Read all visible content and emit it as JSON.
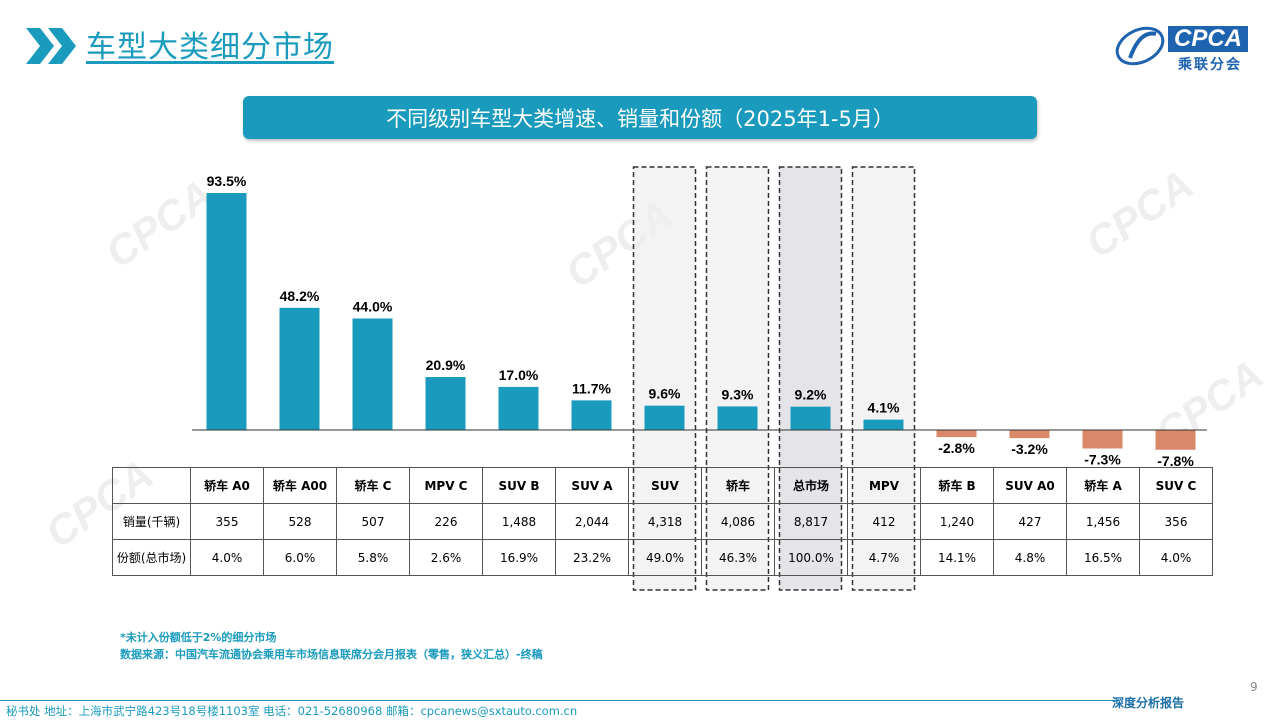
{
  "header": {
    "title": "车型大类细分市场",
    "logo_text": "CPCA",
    "logo_sub": "乘联分会",
    "icon": "double-chevron-right-icon"
  },
  "banner": {
    "text": "不同级别车型大类增速、销量和份额（2025年1-5月）"
  },
  "chart_data": {
    "type": "bar",
    "categories": [
      "轿车 A0",
      "轿车 A00",
      "轿车 C",
      "MPV C",
      "SUV B",
      "SUV A",
      "SUV",
      "轿车",
      "总市场",
      "MPV",
      "轿车 B",
      "SUV A0",
      "轿车 A",
      "SUV C"
    ],
    "values": [
      93.5,
      48.2,
      44.0,
      20.9,
      17.0,
      11.7,
      9.6,
      9.3,
      9.2,
      4.1,
      -2.8,
      -3.2,
      -7.3,
      -7.8
    ],
    "value_labels": [
      "93.5%",
      "48.2%",
      "44.0%",
      "20.9%",
      "17.0%",
      "11.7%",
      "9.6%",
      "9.3%",
      "9.2%",
      "4.1%",
      "-2.8%",
      "-3.2%",
      "-7.3%",
      "-7.8%"
    ],
    "highlighted": [
      "SUV",
      "轿车",
      "总市场",
      "MPV"
    ],
    "colors": {
      "positive": "#1a9bbd",
      "negative": "#d9896a",
      "highlight_box": "#eeeeee",
      "total_box": "#d8d8df"
    },
    "title": "",
    "xlabel": "",
    "ylabel": "",
    "grid": false
  },
  "table": {
    "row_labels": [
      "销量(千辆)",
      "份额(总市场)"
    ],
    "sales": [
      "355",
      "528",
      "507",
      "226",
      "1,488",
      "2,044",
      "4,318",
      "4,086",
      "8,817",
      "412",
      "1,240",
      "427",
      "1,456",
      "356"
    ],
    "share": [
      "4.0%",
      "6.0%",
      "5.8%",
      "2.6%",
      "16.9%",
      "23.2%",
      "49.0%",
      "46.3%",
      "100.0%",
      "4.7%",
      "14.1%",
      "4.8%",
      "16.5%",
      "4.0%"
    ]
  },
  "notes": {
    "note1": "*未计入份额低于2%的细分市场",
    "note2": "数据来源：中国汽车流通协会乘用车市场信息联席分会月报表（零售，狭义汇总）-终稿"
  },
  "footer": {
    "address": "秘书处   地址：上海市武宁路423号18号楼1103室   电话：021-52680968   邮箱：cpcanews@sxtauto.com.cn",
    "right": "深度分析报告",
    "page": "9"
  }
}
